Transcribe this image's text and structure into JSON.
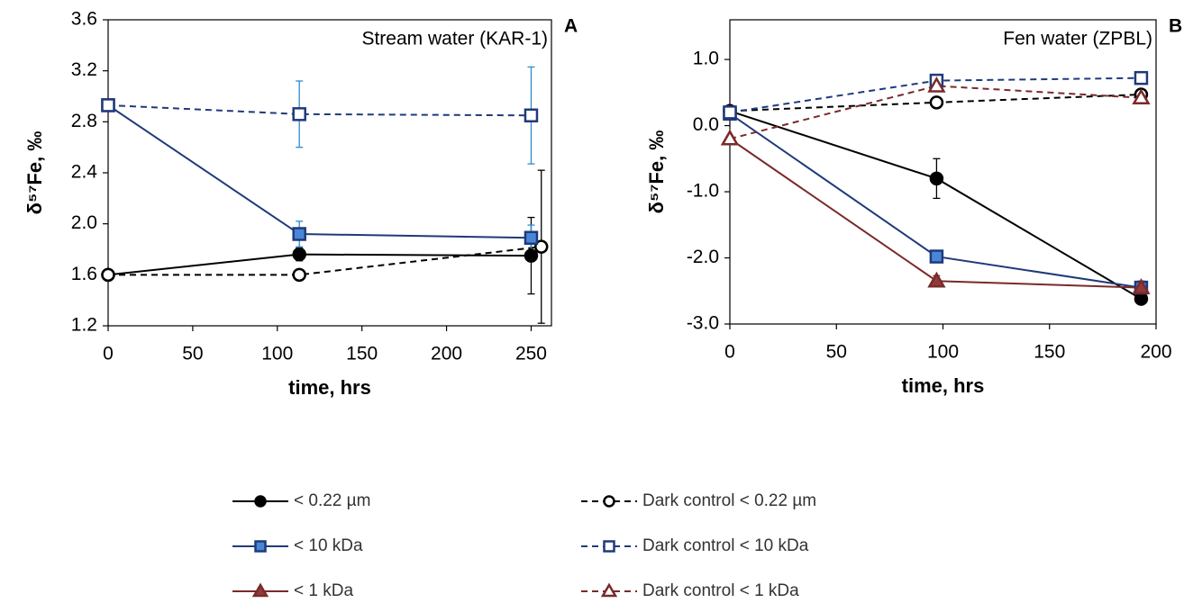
{
  "chart_data": [
    {
      "type": "line",
      "label": "A",
      "title": "Stream water (KAR-1)",
      "x_label": "time, hrs",
      "y_label": "δ⁵⁷Fe, ‰",
      "xlim": [
        0,
        262
      ],
      "xticks": [
        0,
        50,
        100,
        150,
        200,
        250
      ],
      "ylim": [
        1.2,
        3.6
      ],
      "yticks": [
        1.2,
        1.6,
        {
          "value": 2,
          "label": "2.0"
        },
        2.4,
        2.8,
        3.2,
        3.6
      ],
      "series": [
        {
          "name": "< 0.22 µm",
          "color": "#000000",
          "marker": "circle",
          "marker_fill": "#000000",
          "dash": false,
          "error_color": "#000000",
          "x": [
            0,
            113,
            250
          ],
          "values": [
            1.6,
            1.76,
            1.75
          ],
          "errors": [
            null,
            0.05,
            0.3
          ]
        },
        {
          "name": "Dark control < 0.22 µm",
          "color": "#000000",
          "marker": "circle",
          "marker_fill": "#ffffff",
          "dash": true,
          "error_color": "#000000",
          "x": [
            0,
            113,
            256
          ],
          "values": [
            1.6,
            1.6,
            1.82
          ],
          "errors": [
            null,
            null,
            0.6
          ]
        },
        {
          "name": "< 10 kDa",
          "color": "#1f3a7a",
          "marker": "square",
          "marker_fill": "#4a86d8",
          "dash": false,
          "error_color": "#2e8bd0",
          "x": [
            0,
            113,
            250
          ],
          "values": [
            2.93,
            1.92,
            1.89
          ],
          "errors": [
            null,
            0.1,
            0.1
          ]
        },
        {
          "name": "Dark control < 10 kDa",
          "color": "#1f3a7a",
          "marker": "square",
          "marker_fill": "#ffffff",
          "dash": true,
          "error_color": "#2e8bd0",
          "x": [
            0,
            113,
            250
          ],
          "values": [
            2.93,
            2.86,
            2.85
          ],
          "errors": [
            null,
            0.26,
            0.38
          ]
        }
      ]
    },
    {
      "type": "line",
      "label": "B",
      "title": "Fen water (ZPBL)",
      "x_label": "time, hrs",
      "y_label": "δ⁵⁷Fe, ‰",
      "xlim": [
        0,
        200
      ],
      "xticks": [
        0,
        50,
        100,
        150,
        200
      ],
      "ylim": [
        -3,
        1.6
      ],
      "yticks": [
        {
          "value": -3,
          "label": "-3.0"
        },
        {
          "value": -2,
          "label": "-2.0"
        },
        {
          "value": -1,
          "label": "-1.0"
        },
        {
          "value": 0,
          "label": "0.0"
        },
        {
          "value": 1,
          "label": "1.0"
        }
      ],
      "series": [
        {
          "name": "< 0.22 µm",
          "color": "#000000",
          "marker": "circle",
          "marker_fill": "#000000",
          "dash": false,
          "error_color": "#000000",
          "x": [
            0,
            97,
            193
          ],
          "values": [
            0.22,
            -0.8,
            -2.62
          ],
          "errors": [
            null,
            0.3,
            null
          ]
        },
        {
          "name": "Dark control < 0.22 µm",
          "color": "#000000",
          "marker": "circle",
          "marker_fill": "#ffffff",
          "dash": true,
          "error_color": "#000000",
          "x": [
            0,
            97,
            193
          ],
          "values": [
            0.22,
            0.35,
            0.47
          ],
          "errors": [
            null,
            null,
            null
          ]
        },
        {
          "name": "< 10 kDa",
          "color": "#1f3a7a",
          "marker": "square",
          "marker_fill": "#4a86d8",
          "dash": false,
          "error_color": "#1f3a7a",
          "x": [
            0,
            97,
            193
          ],
          "values": [
            0.18,
            -1.98,
            -2.45
          ],
          "errors": [
            null,
            null,
            null
          ]
        },
        {
          "name": "Dark control < 10 kDa",
          "color": "#1f3a7a",
          "marker": "square",
          "marker_fill": "#ffffff",
          "dash": true,
          "error_color": "#1f3a7a",
          "x": [
            0,
            97,
            193
          ],
          "values": [
            0.2,
            0.68,
            0.72
          ],
          "errors": [
            null,
            null,
            null
          ]
        },
        {
          "name": "< 1 kDa",
          "color": "#7a2a2a",
          "marker": "triangle",
          "marker_fill": "#8e3b3b",
          "dash": false,
          "error_color": "#7a2a2a",
          "x": [
            0,
            97,
            193
          ],
          "values": [
            -0.2,
            -2.35,
            -2.45
          ],
          "errors": [
            null,
            0.08,
            0.1
          ]
        },
        {
          "name": "Dark control < 1 kDa",
          "color": "#7a2a2a",
          "marker": "triangle",
          "marker_fill": "#ffffff",
          "dash": true,
          "error_color": "#7a2a2a",
          "x": [
            0,
            97,
            193
          ],
          "values": [
            -0.2,
            0.6,
            0.42
          ],
          "errors": [
            null,
            null,
            null
          ]
        }
      ]
    }
  ]
}
